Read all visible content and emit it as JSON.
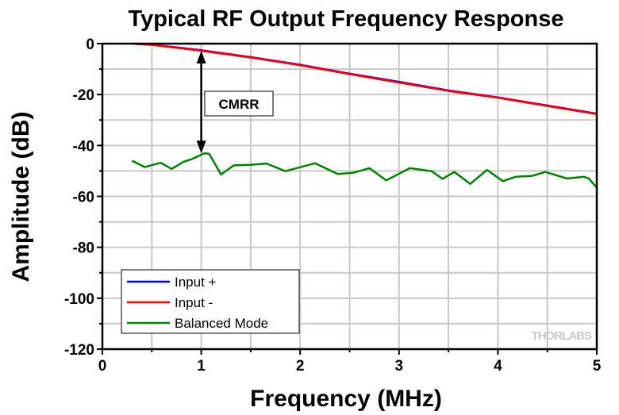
{
  "chart_data": {
    "type": "line",
    "title": "Typical RF Output Frequency Response",
    "xlabel": "Frequency (MHz)",
    "ylabel": "Amplitude (dB)",
    "xlim": [
      0,
      5
    ],
    "ylim": [
      -120,
      0
    ],
    "xticks": [
      0,
      1,
      2,
      3,
      4,
      5
    ],
    "yticks": [
      0,
      -20,
      -40,
      -60,
      -80,
      -100,
      -120
    ],
    "grid": true,
    "grid_x_step": 0.5,
    "grid_y_step": 10,
    "legend_position": "bottom-left",
    "series": [
      {
        "name": "Input +",
        "color": "#0000ff",
        "x": [
          0.3,
          0.5,
          1.0,
          1.5,
          2.0,
          2.5,
          3.0,
          3.5,
          4.0,
          4.5,
          5.0
        ],
        "y": [
          0,
          -0.4,
          -2.6,
          -5.3,
          -8.3,
          -11.8,
          -15.0,
          -18.4,
          -21.1,
          -24.3,
          -27.5
        ]
      },
      {
        "name": "Input -",
        "color": "#ff0000",
        "x": [
          0.3,
          0.5,
          1.0,
          1.5,
          2.0,
          2.5,
          3.0,
          3.5,
          4.0,
          4.5,
          5.0
        ],
        "y": [
          0,
          -0.5,
          -2.8,
          -5.5,
          -8.5,
          -12.0,
          -15.3,
          -18.6,
          -21.3,
          -24.5,
          -27.7
        ]
      },
      {
        "name": "Balanced Mode",
        "color": "#008000",
        "x": [
          0.3,
          0.43,
          0.59,
          0.7,
          0.82,
          0.9,
          1.03,
          1.08,
          1.2,
          1.33,
          1.49,
          1.66,
          1.85,
          2.15,
          2.38,
          2.54,
          2.7,
          2.87,
          3.11,
          3.33,
          3.44,
          3.56,
          3.72,
          3.89,
          4.05,
          4.18,
          4.34,
          4.48,
          4.7,
          4.87,
          4.92,
          5.0
        ],
        "y": [
          -46.0,
          -48.5,
          -46.8,
          -49.2,
          -46.4,
          -45.4,
          -43.1,
          -43.3,
          -51.4,
          -47.8,
          -47.6,
          -47.1,
          -50.1,
          -47.0,
          -51.2,
          -50.7,
          -48.9,
          -53.7,
          -48.9,
          -50.1,
          -53.1,
          -50.4,
          -55.1,
          -49.6,
          -54.0,
          -52.3,
          -52.0,
          -50.4,
          -53.0,
          -52.3,
          -53.0,
          -56.6
        ]
      }
    ],
    "annotations": [
      {
        "text": "CMRR",
        "arrow_x": 1.0,
        "arrow_from": -2.8,
        "arrow_to": -43.1
      }
    ],
    "watermark": "THORLABS"
  }
}
